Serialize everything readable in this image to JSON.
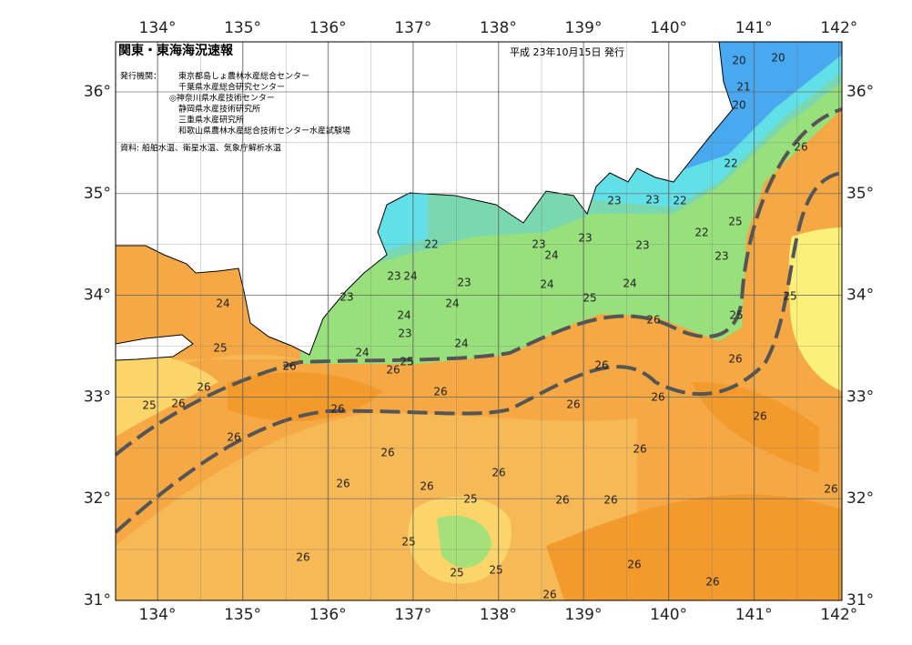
{
  "header": {
    "title": "関東・東海海況速報",
    "date": "平成 23年10月15日 発行",
    "issuer_label": "発行機関：",
    "agencies": [
      "東京都島しょ農林水産総合センター",
      "千葉県水産総合研究センター",
      "◎神奈川県水産技術センター",
      "静岡県水産技術研究所",
      "三重県水産研究所",
      "和歌山県農林水産総合技術センター水産試験場"
    ],
    "source": "資料: 船舶水温、衛星水温、気象庁解析水温"
  },
  "map": {
    "lon_ticks": [
      "134°",
      "135°",
      "136°",
      "137°",
      "138°",
      "139°",
      "140°",
      "141°",
      "142°"
    ],
    "lat_ticks": [
      "36°",
      "35°",
      "34°",
      "33°",
      "32°",
      "31°"
    ],
    "contour_labels": [
      20,
      20,
      21,
      20,
      22,
      26,
      23,
      23,
      22,
      25,
      22,
      22,
      23,
      24,
      23,
      23,
      23,
      23,
      24,
      23,
      24,
      24,
      24,
      23,
      25,
      24,
      24,
      25,
      26,
      25,
      23,
      24,
      24,
      25,
      25,
      26,
      26,
      26,
      26,
      26,
      26,
      26,
      25,
      26,
      26,
      26,
      26,
      26,
      26,
      26,
      26,
      26,
      26,
      25,
      26,
      26,
      26,
      25,
      26,
      26,
      25,
      25,
      26,
      26
    ]
  }
}
